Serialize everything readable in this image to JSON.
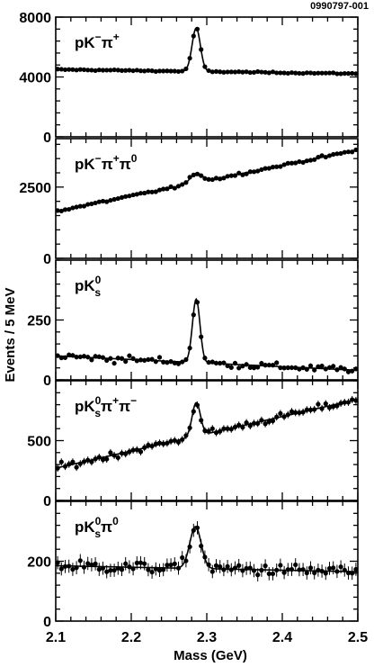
{
  "figure_id": "0990797-001",
  "chart_data": [
    {
      "type": "scatter",
      "channel": {
        "base": "pK",
        "k_sup": "−",
        "k_sub": "",
        "tail": [
          {
            "t": "π",
            "sup": "+"
          }
        ]
      },
      "xlim": [
        2.1,
        2.5
      ],
      "ylim": [
        0,
        8000
      ],
      "yticks": [
        0,
        4000,
        8000
      ],
      "ytick_labels": [
        "0",
        "4000",
        "8000"
      ],
      "background": [
        4500,
        4220
      ],
      "peak": {
        "mass": 2.286,
        "amplitude": 2900,
        "sigma": 0.0055
      },
      "xlabel": "",
      "ylabel": ""
    },
    {
      "type": "scatter",
      "channel": {
        "base": "pK",
        "k_sup": "−",
        "k_sub": "",
        "tail": [
          {
            "t": "π",
            "sup": "+"
          },
          {
            "t": "π",
            "sup": "0"
          }
        ]
      },
      "xlim": [
        2.1,
        2.5
      ],
      "ylim": [
        0,
        4200
      ],
      "yticks": [
        0,
        2500
      ],
      "ytick_labels": [
        "0",
        "2500"
      ],
      "background": [
        1650,
        3800
      ],
      "peak": {
        "mass": 2.286,
        "amplitude": 330,
        "sigma": 0.008
      },
      "xlabel": "",
      "ylabel": ""
    },
    {
      "type": "scatter",
      "channel": {
        "base": "pK",
        "k_sup": "0",
        "k_sub": "s",
        "tail": []
      },
      "xlim": [
        2.1,
        2.5
      ],
      "ylim": [
        0,
        500
      ],
      "yticks": [
        0,
        250
      ],
      "ytick_labels": [
        "0",
        "250"
      ],
      "background": [
        100,
        40
      ],
      "peak": {
        "mass": 2.286,
        "amplitude": 265,
        "sigma": 0.005
      },
      "xlabel": "",
      "ylabel": ""
    },
    {
      "type": "scatter",
      "channel": {
        "base": "pK",
        "k_sup": "0",
        "k_sub": "s",
        "tail": [
          {
            "t": "π",
            "sup": "+"
          },
          {
            "t": "π",
            "sup": "−"
          }
        ]
      },
      "xlim": [
        2.1,
        2.5
      ],
      "ylim": [
        0,
        1000
      ],
      "yticks": [
        0,
        500
      ],
      "ytick_labels": [
        "0",
        "500"
      ],
      "background": [
        270,
        845
      ],
      "peak": {
        "mass": 2.286,
        "amplitude": 280,
        "sigma": 0.0055
      },
      "xlabel": "",
      "ylabel": ""
    },
    {
      "type": "scatter",
      "channel": {
        "base": "pK",
        "k_sup": "0",
        "k_sub": "s",
        "tail": [
          {
            "t": "π",
            "sup": "0"
          }
        ]
      },
      "xlim": [
        2.1,
        2.5
      ],
      "ylim": [
        0,
        400
      ],
      "yticks": [
        0,
        200
      ],
      "ytick_labels": [
        "0",
        "200"
      ],
      "background": [
        185,
        165
      ],
      "peak": {
        "mass": 2.285,
        "amplitude": 140,
        "sigma": 0.0075
      },
      "xlabel": "Mass (GeV)",
      "ylabel": ""
    }
  ],
  "shared_axes": {
    "xticks": [
      2.1,
      2.2,
      2.3,
      2.4,
      2.5
    ],
    "xtick_labels": [
      "2.1",
      "2.2",
      "2.3",
      "2.4",
      "2.5"
    ],
    "xlabel": "Mass (GeV)",
    "ylabel": "Events / 5 MeV"
  },
  "style": {
    "marker_color": "#000000",
    "fit_color": "#000000",
    "frame_color": "#000000"
  }
}
